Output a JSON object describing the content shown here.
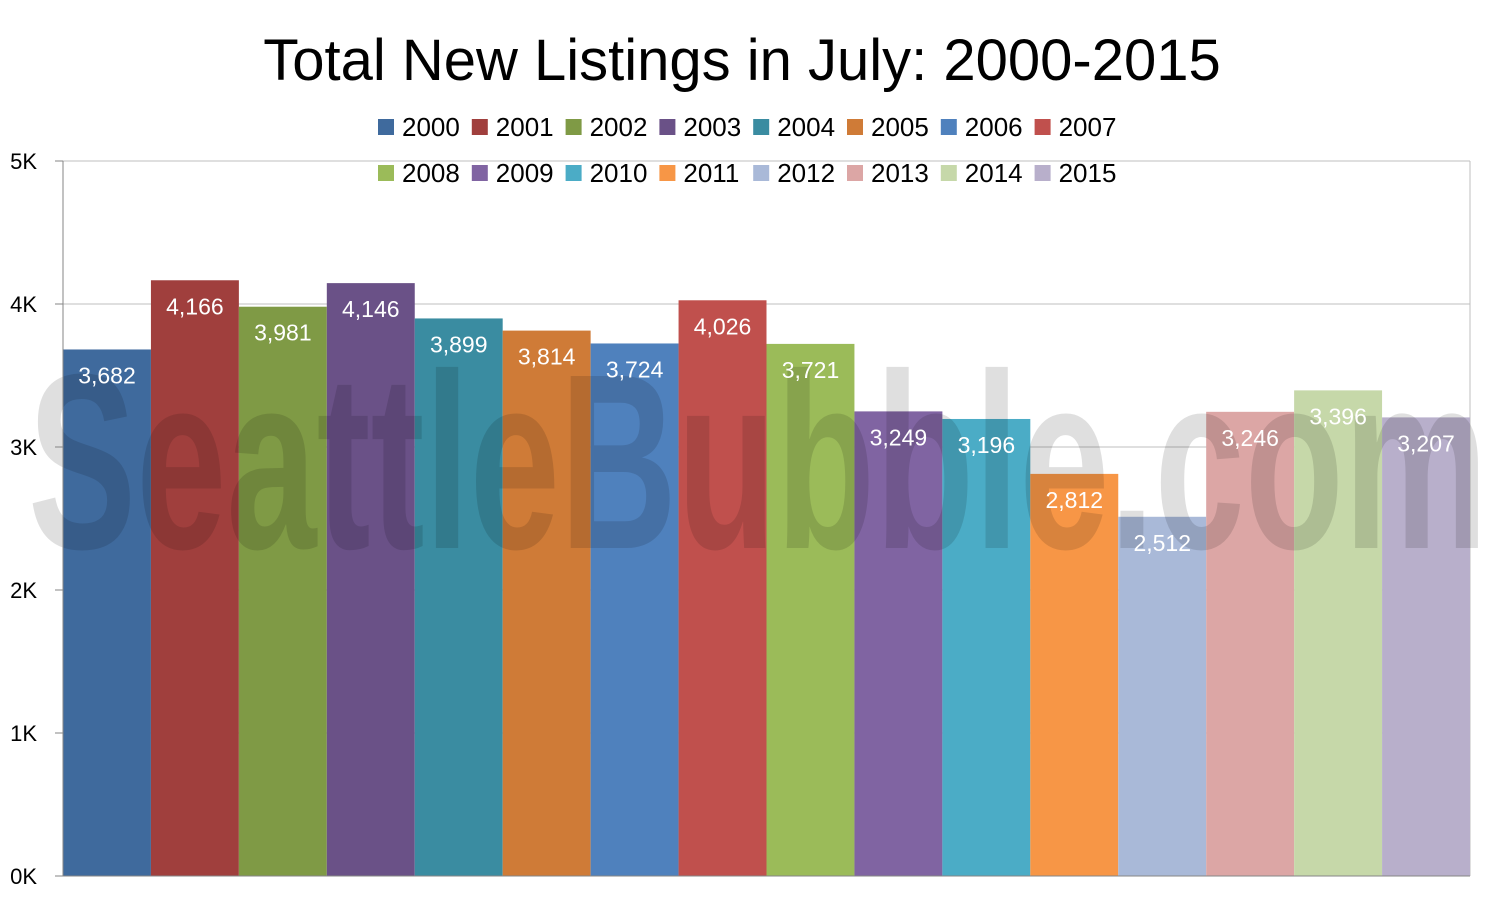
{
  "chart_data": {
    "type": "bar",
    "title": "Total New Listings in July: 2000-2015",
    "xlabel": "",
    "ylabel": "",
    "ylim": [
      0,
      5000
    ],
    "y_ticks": [
      "0K",
      "1K",
      "2K",
      "3K",
      "4K",
      "5K"
    ],
    "y_tick_values": [
      0,
      1000,
      2000,
      3000,
      4000,
      5000
    ],
    "grid": "horizontal",
    "legend_position": "top",
    "watermark": "SeattleBubble.com",
    "series": [
      {
        "name": "2000",
        "value": 3682,
        "label": "3,682",
        "color": "#3F6A9D"
      },
      {
        "name": "2001",
        "value": 4166,
        "label": "4,166",
        "color": "#A03F3D"
      },
      {
        "name": "2002",
        "value": 3981,
        "label": "3,981",
        "color": "#7F9A45"
      },
      {
        "name": "2003",
        "value": 4146,
        "label": "4,146",
        "color": "#6A5187"
      },
      {
        "name": "2004",
        "value": 3899,
        "label": "3,899",
        "color": "#3A8CA1"
      },
      {
        "name": "2005",
        "value": 3814,
        "label": "3,814",
        "color": "#CF7B37"
      },
      {
        "name": "2006",
        "value": 3724,
        "label": "3,724",
        "color": "#4F81BD"
      },
      {
        "name": "2007",
        "value": 4026,
        "label": "4,026",
        "color": "#C0504D"
      },
      {
        "name": "2008",
        "value": 3721,
        "label": "3,721",
        "color": "#9BBB59"
      },
      {
        "name": "2009",
        "value": 3249,
        "label": "3,249",
        "color": "#8064A2"
      },
      {
        "name": "2010",
        "value": 3196,
        "label": "3,196",
        "color": "#4BACC6"
      },
      {
        "name": "2011",
        "value": 2812,
        "label": "2,812",
        "color": "#F79646"
      },
      {
        "name": "2012",
        "value": 2512,
        "label": "2,512",
        "color": "#A9B9D8"
      },
      {
        "name": "2013",
        "value": 3246,
        "label": "3,246",
        "color": "#DCA6A5"
      },
      {
        "name": "2014",
        "value": 3396,
        "label": "3,396",
        "color": "#C6D8A9"
      },
      {
        "name": "2015",
        "value": 3207,
        "label": "3,207",
        "color": "#B8AFCB"
      }
    ]
  }
}
